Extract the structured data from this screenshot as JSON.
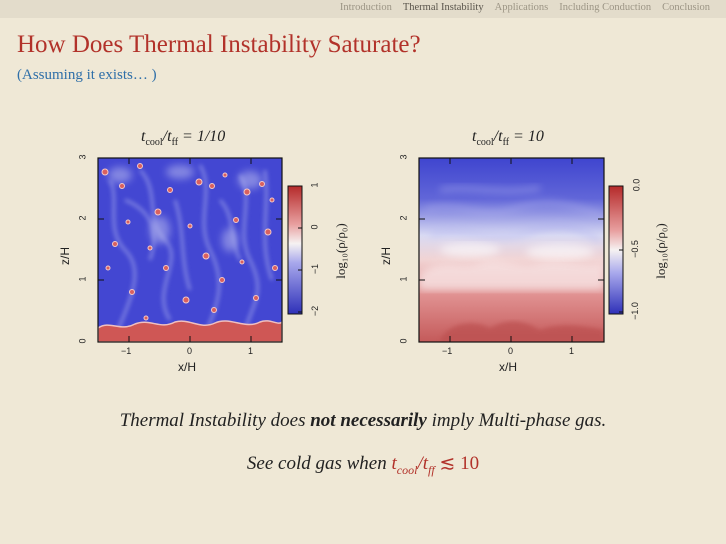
{
  "nav": {
    "items": [
      "Introduction",
      "Thermal Instability",
      "Applications",
      "Including Conduction",
      "Conclusion"
    ],
    "active_index": 1
  },
  "slide": {
    "title": "How Does Thermal Instability Saturate?",
    "subtitle": "(Assuming it exists… )"
  },
  "panels": [
    {
      "title_main": "t",
      "title_sub": "cool",
      "title_mid": "/t",
      "title_sub2": "ff",
      "title_val": " = 1/10",
      "ylabel": "z/H",
      "xlabel": "x/H",
      "xticks": [
        "−1",
        "0",
        "1"
      ],
      "yticks": [
        "0",
        "1",
        "2",
        "3"
      ],
      "colorbar_ticks": [
        "1",
        "0",
        "−1",
        "−2"
      ],
      "colorbar_label": "log₁₀(ρ/ρ₀)"
    },
    {
      "title_main": "t",
      "title_sub": "cool",
      "title_mid": "/t",
      "title_sub2": "ff",
      "title_val": " = 10",
      "ylabel": "z/H",
      "xlabel": "x/H",
      "xticks": [
        "−1",
        "0",
        "1"
      ],
      "yticks": [
        "0",
        "1",
        "2",
        "3"
      ],
      "colorbar_ticks": [
        "0.0",
        "−0.5",
        "−1.0"
      ],
      "colorbar_label": "log₁₀(ρ/ρ₀)"
    }
  ],
  "colors": {
    "title": "#b2322a",
    "subtitle": "#2f6fa8",
    "cold_blue": "#3a3fc8",
    "hot_red": "#c84a4a"
  },
  "statements": {
    "line1_a": "Thermal Instability does ",
    "line1_b": "not necessarily",
    "line1_c": " imply Multi-phase gas.",
    "line2_a": "See cold gas when ",
    "line2_t": "t",
    "line2_sub1": "cool",
    "line2_mid": "/t",
    "line2_sub2": "ff",
    "line2_end": " ≲ 10"
  }
}
